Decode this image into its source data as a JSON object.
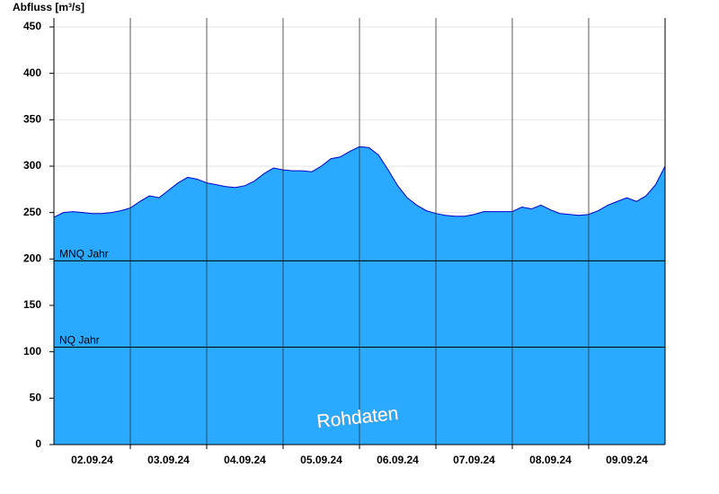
{
  "chart_data": {
    "type": "area",
    "y_label": "Abfluss [m³/s]",
    "annotation": "Rohdaten",
    "x": [
      0,
      0.125,
      0.25,
      0.375,
      0.5,
      0.625,
      0.75,
      0.875,
      1,
      1.125,
      1.25,
      1.375,
      1.5,
      1.625,
      1.75,
      1.875,
      2,
      2.125,
      2.25,
      2.375,
      2.5,
      2.625,
      2.75,
      2.875,
      3,
      3.125,
      3.25,
      3.375,
      3.5,
      3.625,
      3.75,
      3.875,
      4,
      4.125,
      4.25,
      4.375,
      4.5,
      4.625,
      4.75,
      4.875,
      5,
      5.125,
      5.25,
      5.375,
      5.5,
      5.625,
      5.75,
      5.875,
      6,
      6.125,
      6.25,
      6.375,
      6.5,
      6.625,
      6.75,
      6.875,
      7,
      7.125,
      7.25,
      7.375,
      7.5,
      7.625,
      7.75,
      7.875,
      8
    ],
    "series": [
      {
        "color": "#29a9ff",
        "line_color": "#0000cc",
        "values": [
          245,
          250,
          251,
          250,
          249,
          249,
          250,
          252,
          255,
          262,
          268,
          266,
          274,
          282,
          288,
          286,
          282,
          280,
          278,
          277,
          279,
          284,
          292,
          298,
          296,
          295,
          295,
          294,
          300,
          308,
          310,
          316,
          321,
          320,
          312,
          296,
          279,
          266,
          258,
          252,
          249,
          247,
          246,
          246,
          248,
          251,
          251,
          251,
          251,
          256,
          254,
          258,
          253,
          249,
          248,
          247,
          248,
          252,
          258,
          262,
          266,
          262,
          268,
          280,
          300
        ]
      }
    ],
    "xlim": [
      0,
      8
    ],
    "xticks": [
      {
        "value": 0.5,
        "label": "02.09.24"
      },
      {
        "value": 1.5,
        "label": "03.09.24"
      },
      {
        "value": 2.5,
        "label": "04.09.24"
      },
      {
        "value": 3.5,
        "label": "05.09.24"
      },
      {
        "value": 4.5,
        "label": "06.09.24"
      },
      {
        "value": 5.5,
        "label": "07.09.24"
      },
      {
        "value": 6.5,
        "label": "08.09.24"
      },
      {
        "value": 7.5,
        "label": "09.09.24"
      }
    ],
    "day_boundaries": [
      1,
      2,
      3,
      4,
      5,
      6,
      7
    ],
    "ylim": [
      0,
      450
    ],
    "yticks": [
      0,
      50,
      100,
      150,
      200,
      250,
      300,
      350,
      400,
      450
    ],
    "grid": true,
    "reference_lines": [
      {
        "label": "MNQ Jahr",
        "value": 198
      },
      {
        "label": "NQ Jahr",
        "value": 105
      }
    ]
  }
}
